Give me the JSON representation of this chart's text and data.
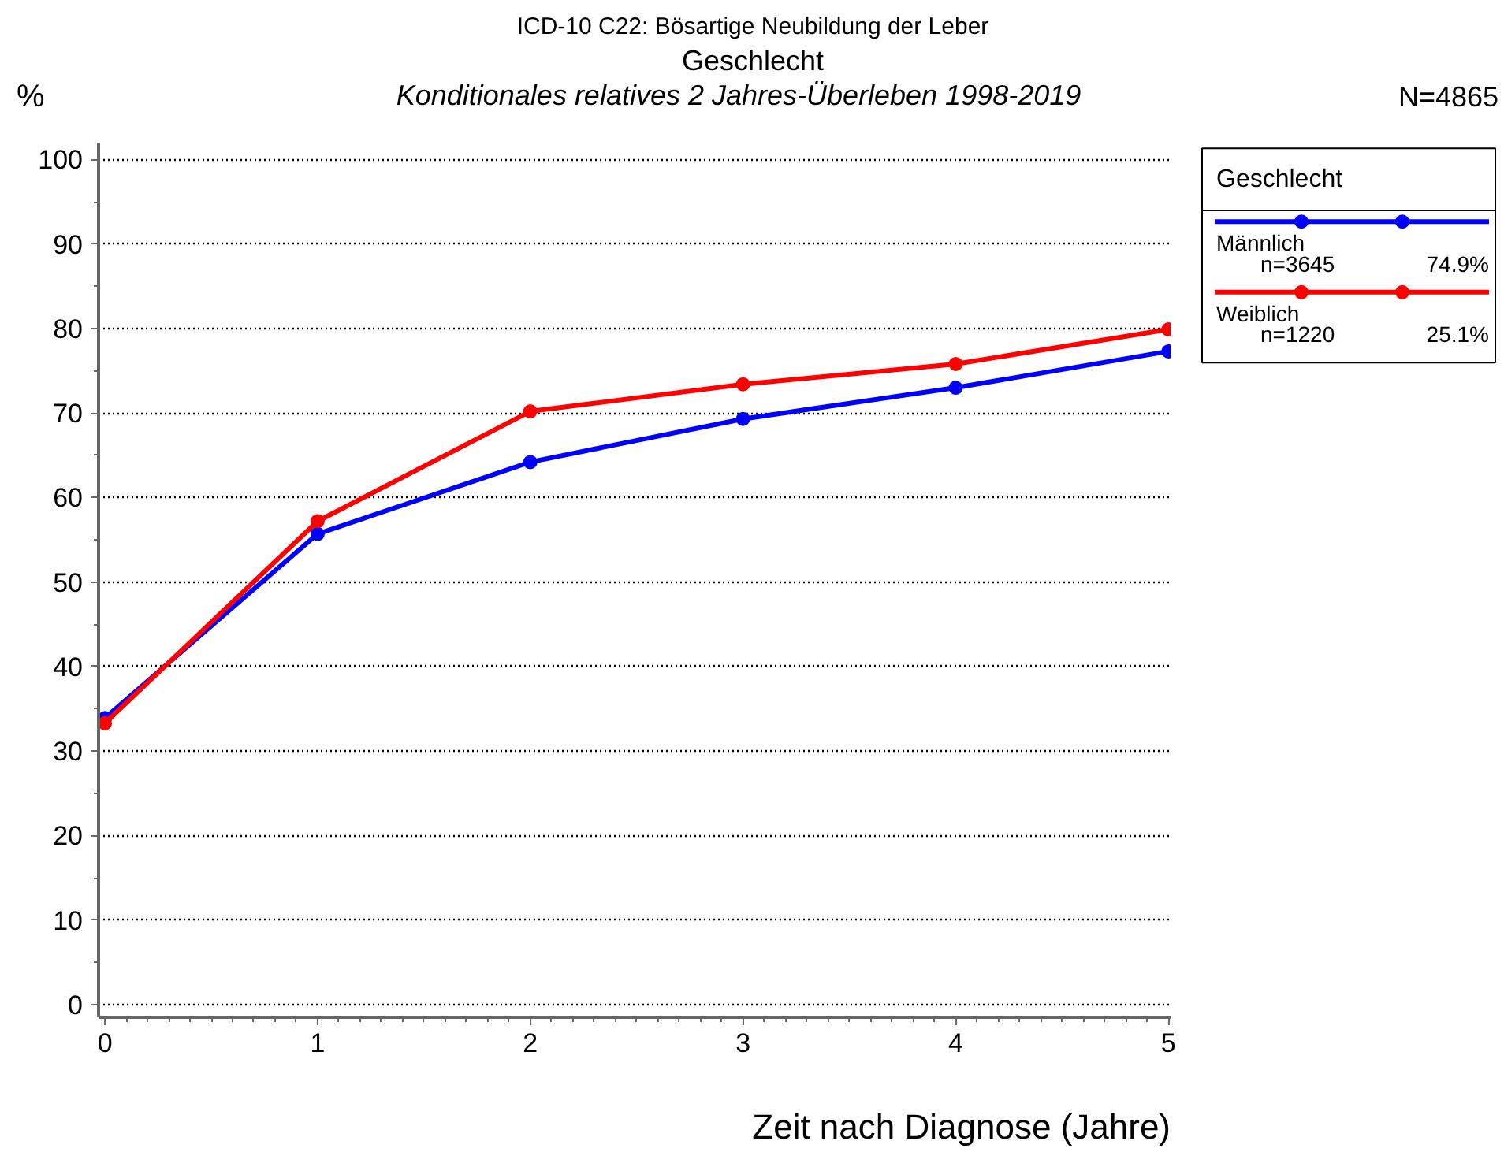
{
  "chart_data": {
    "type": "line",
    "title": "ICD-10 C22: Bösartige Neubildung der Leber",
    "subtitle": "Geschlecht",
    "annotations": [
      "Konditionales relatives 2 Jahres-Überleben 1998-2019",
      "N=4865",
      "n=3645",
      "74.9%",
      "n=1220",
      "25.1%"
    ],
    "xlabel": "Zeit nach Diagnose (Jahre)",
    "ylabel": "%",
    "legend_title": "Geschlecht",
    "x": [
      0,
      1,
      2,
      3,
      4,
      5
    ],
    "series": [
      {
        "name": "Männlich",
        "color": "#0000ff",
        "values": [
          33.9,
          55.7,
          64.2,
          69.3,
          73.0,
          77.3
        ]
      },
      {
        "name": "Weiblich",
        "color": "#ff0000",
        "values": [
          33.3,
          57.2,
          70.2,
          73.4,
          75.8,
          79.9
        ]
      }
    ],
    "xlim": [
      -0.03,
      5.01
    ],
    "ylim": [
      -1.5,
      102
    ],
    "xticks": [
      0,
      1,
      2,
      3,
      4,
      5
    ],
    "yticks": [
      0,
      10,
      20,
      30,
      40,
      50,
      60,
      70,
      80,
      90,
      100
    ],
    "grid": "y",
    "legend": "top right",
    "marker": "circle",
    "line_style": "solid"
  }
}
